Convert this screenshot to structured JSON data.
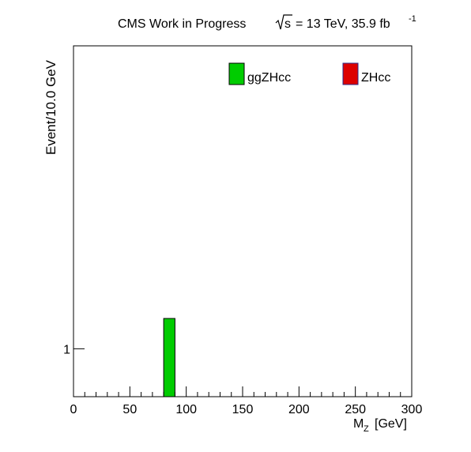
{
  "header": {
    "experiment": "CMS Work in Progress",
    "sqrt_s": "s",
    "energy_lumi": "= 13 TeV, 35.9 fb",
    "lumi_exp": "-1"
  },
  "chart_data": {
    "type": "bar",
    "title": "CMS Work in Progress",
    "xlabel_main": "M",
    "xlabel_sub": "Z",
    "xlabel_unit": "[GeV]",
    "ylabel": "Event/10.0 GeV",
    "xlim": [
      0,
      300
    ],
    "yscale": "log",
    "ylim": [
      0.5,
      80
    ],
    "x_ticks": [
      0,
      50,
      100,
      150,
      200,
      250,
      300
    ],
    "x_tick_labels": [
      "0",
      "50",
      "100",
      "150",
      "200",
      "250",
      "300"
    ],
    "y_ticks": [
      1
    ],
    "y_tick_labels": [
      "1"
    ],
    "bin_width": 10,
    "legend_position": "top",
    "series": [
      {
        "name": "ggZHcc",
        "color": "#00cc00",
        "bins": [
          {
            "x0": 80,
            "x1": 90,
            "y": 1.55
          }
        ]
      },
      {
        "name": "ZHcc",
        "color": "#dd0000",
        "bins": []
      }
    ]
  }
}
